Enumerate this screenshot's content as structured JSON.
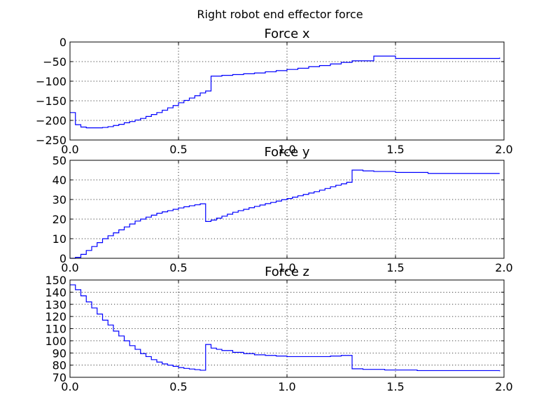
{
  "figure_title": "Right robot  end effector force",
  "colors": {
    "series": "#0000ff"
  },
  "chart_data": [
    {
      "type": "line",
      "step": true,
      "title": "Force x",
      "xlim": [
        0,
        2.0
      ],
      "ylim": [
        -250,
        0
      ],
      "xticks": [
        "0.0",
        "0.5",
        "1.0",
        "1.5",
        "2.0"
      ],
      "yticks": [
        "−250",
        "−200",
        "−150",
        "−100",
        "−50",
        "0"
      ],
      "grid": true,
      "x": [
        0,
        0.025,
        0.05,
        0.075,
        0.1,
        0.125,
        0.15,
        0.175,
        0.2,
        0.225,
        0.25,
        0.275,
        0.3,
        0.325,
        0.35,
        0.375,
        0.4,
        0.425,
        0.45,
        0.475,
        0.5,
        0.525,
        0.55,
        0.575,
        0.6,
        0.625,
        0.65,
        0.7,
        0.75,
        0.8,
        0.85,
        0.9,
        0.95,
        1.0,
        1.05,
        1.1,
        1.15,
        1.2,
        1.25,
        1.3,
        1.4,
        1.5,
        1.98
      ],
      "y": [
        -180,
        -211,
        -217,
        -219,
        -219,
        -219,
        -218,
        -216,
        -213,
        -210,
        -206,
        -203,
        -199,
        -195,
        -190,
        -185,
        -180,
        -174,
        -168,
        -162,
        -155,
        -149,
        -143,
        -137,
        -130,
        -125,
        -87,
        -85,
        -83,
        -81,
        -79,
        -76,
        -73,
        -70,
        -67,
        -63,
        -60,
        -56,
        -52,
        -48,
        -36,
        -42,
        -40
      ]
    },
    {
      "type": "line",
      "step": true,
      "title": "Force y",
      "xlim": [
        0,
        2.0
      ],
      "ylim": [
        0,
        50
      ],
      "xticks": [
        "0.0",
        "0.5",
        "1.0",
        "1.5",
        "2.0"
      ],
      "yticks": [
        "0",
        "10",
        "20",
        "30",
        "40",
        "50"
      ],
      "grid": true,
      "x": [
        0,
        0.025,
        0.05,
        0.075,
        0.1,
        0.125,
        0.15,
        0.175,
        0.2,
        0.225,
        0.25,
        0.275,
        0.3,
        0.325,
        0.35,
        0.375,
        0.4,
        0.425,
        0.45,
        0.475,
        0.5,
        0.525,
        0.55,
        0.575,
        0.6,
        0.625,
        0.65,
        0.675,
        0.7,
        0.725,
        0.75,
        0.775,
        0.8,
        0.825,
        0.85,
        0.875,
        0.9,
        0.925,
        0.95,
        0.975,
        1.0,
        1.025,
        1.05,
        1.075,
        1.1,
        1.125,
        1.15,
        1.175,
        1.2,
        1.225,
        1.25,
        1.275,
        1.3,
        1.35,
        1.4,
        1.5,
        1.65,
        1.98
      ],
      "y": [
        0,
        0.5,
        2,
        4,
        6,
        8,
        10,
        11.5,
        13,
        14.5,
        16,
        17.5,
        19,
        20,
        21,
        22,
        23,
        23.7,
        24.3,
        25,
        25.7,
        26.3,
        26.8,
        27.3,
        27.8,
        18.8,
        19.5,
        20.5,
        21.5,
        22.5,
        23.5,
        24.3,
        25,
        25.8,
        26.5,
        27.2,
        27.9,
        28.5,
        29.2,
        29.9,
        30.5,
        31.2,
        31.9,
        32.6,
        33.3,
        34,
        34.8,
        35.6,
        36.5,
        37.3,
        38,
        38.8,
        45,
        44.6,
        44.3,
        43.8,
        43.3,
        43.3
      ]
    },
    {
      "type": "line",
      "step": true,
      "title": "Force z",
      "xlim": [
        0,
        2.0
      ],
      "ylim": [
        70,
        150
      ],
      "xticks": [
        "0.0",
        "0.5",
        "1.0",
        "1.5",
        "2.0"
      ],
      "yticks": [
        "70",
        "80",
        "90",
        "100",
        "110",
        "120",
        "130",
        "140",
        "150"
      ],
      "grid": true,
      "x": [
        0,
        0.025,
        0.05,
        0.075,
        0.1,
        0.125,
        0.15,
        0.175,
        0.2,
        0.225,
        0.25,
        0.275,
        0.3,
        0.325,
        0.35,
        0.375,
        0.4,
        0.425,
        0.45,
        0.475,
        0.5,
        0.525,
        0.55,
        0.575,
        0.6,
        0.625,
        0.65,
        0.675,
        0.7,
        0.75,
        0.8,
        0.85,
        0.9,
        0.95,
        1.0,
        1.2,
        1.25,
        1.3,
        1.35,
        1.45,
        1.6,
        1.98
      ],
      "y": [
        146,
        142,
        137,
        132,
        127,
        122,
        117,
        113,
        108,
        104,
        100,
        96,
        93,
        89.5,
        87,
        84.5,
        82.5,
        81,
        80,
        79,
        78,
        77.3,
        76.8,
        76.3,
        75.8,
        97,
        94,
        93,
        92,
        90.5,
        89.5,
        88.5,
        88,
        87.5,
        87,
        87.5,
        88,
        77,
        76.5,
        76,
        75.5,
        75
      ]
    }
  ]
}
